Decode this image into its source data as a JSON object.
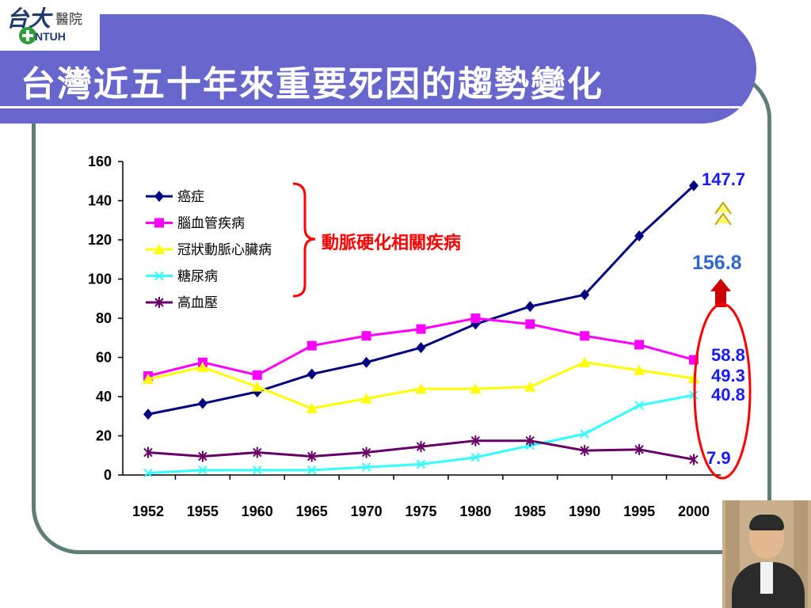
{
  "slide": {
    "title": "台灣近五十年來重要死因的趨勢變化",
    "logo": {
      "line1": "台大",
      "line2": "醫院",
      "line3": "NTUH"
    }
  },
  "annotations": {
    "bracket_label": "動脈硬化相關疾病",
    "cancer_end": "147.7",
    "combined_total": "156.8",
    "cerebro_end": "58.8",
    "heart_end": "49.3",
    "diabetes_end": "40.8",
    "hypertension_end": "7.9",
    "colors": {
      "highlight": "#ff0000",
      "label_blue": "#1a1aff",
      "total_blue": "#3366cc",
      "arrow_fill": "#ffff66"
    }
  },
  "chart_data": {
    "type": "line",
    "categories": [
      "1952",
      "1955",
      "1960",
      "1965",
      "1970",
      "1975",
      "1980",
      "1985",
      "1990",
      "1995",
      "2000"
    ],
    "ylim": [
      0,
      160
    ],
    "yticks": [
      "0",
      "20",
      "40",
      "60",
      "80",
      "100",
      "120",
      "140",
      "160"
    ],
    "title": "",
    "xlabel": "",
    "ylabel": "",
    "legend": "top-left",
    "series": [
      {
        "name": "癌症",
        "color": "#000080",
        "marker": "diamond",
        "values": [
          31,
          36.5,
          42.5,
          51.5,
          57.5,
          65,
          77,
          86,
          92,
          122,
          147.7
        ]
      },
      {
        "name": "腦血管疾病",
        "color": "#ff00ff",
        "marker": "square",
        "values": [
          50.5,
          57.5,
          51,
          66,
          71,
          74.5,
          80,
          77,
          71,
          66.5,
          58.8
        ]
      },
      {
        "name": "冠狀動脈心臟病",
        "color": "#ffff00",
        "marker": "triangle",
        "values": [
          49,
          55,
          45,
          34,
          39,
          44,
          44,
          45,
          57.5,
          53.5,
          49.3
        ]
      },
      {
        "name": "糖尿病",
        "color": "#33ffff",
        "marker": "x",
        "values": [
          1,
          2.5,
          2.5,
          2.5,
          4,
          5.5,
          9,
          15,
          21,
          35.5,
          40.8
        ]
      },
      {
        "name": "高血壓",
        "color": "#660066",
        "marker": "star",
        "values": [
          11.5,
          9.5,
          11.5,
          9.5,
          11.5,
          14.5,
          17.5,
          17.5,
          12.5,
          13,
          7.9
        ]
      }
    ]
  }
}
